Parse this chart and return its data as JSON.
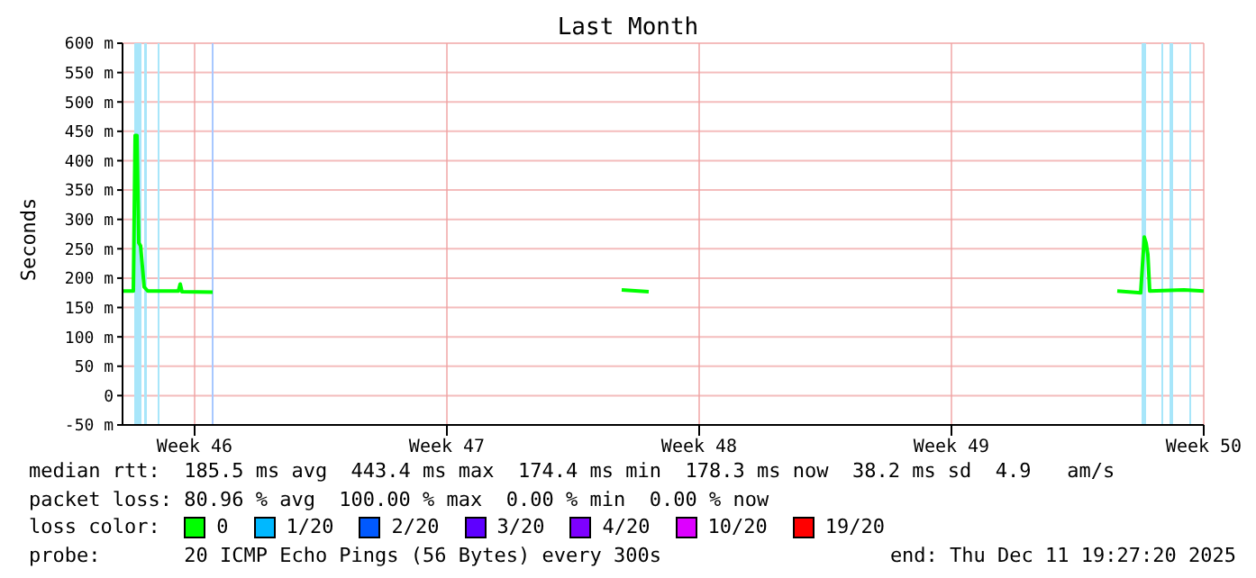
{
  "chart_data": {
    "type": "line",
    "title": "Last Month",
    "ylabel": "Seconds",
    "x": [
      "2025-11-11T19:27",
      "2025-11-12T02:39",
      "2025-11-12T03:51",
      "2025-11-12T05:03",
      "2025-11-12T06:15",
      "2025-11-12T07:27",
      "2025-11-12T08:39",
      "2025-11-12T09:51",
      "2025-11-12T12:15",
      "2025-11-13T08:39",
      "2025-11-13T09:51",
      "2025-11-13T11:03",
      "2025-11-14T07:27",
      "2025-11-20T00:00",
      "2025-11-25T15:51",
      "2025-11-26T09:51",
      "2025-12-03T00:00",
      "2025-12-09T09:51",
      "2025-12-10T01:27",
      "2025-12-10T03:51",
      "2025-12-10T05:03",
      "2025-12-10T06:15",
      "2025-12-10T07:27",
      "2025-12-11T06:15",
      "2025-12-11T19:27"
    ],
    "series": [
      {
        "name": "0",
        "color": "#00ff00",
        "values": [
          178,
          178,
          443,
          443,
          260,
          255,
          220,
          185,
          178,
          178,
          190,
          177,
          176,
          null,
          180,
          177,
          null,
          178,
          175,
          270,
          260,
          240,
          178,
          180,
          178
        ]
      },
      {
        "name": "1/20",
        "color": "#00b8ff",
        "values": [
          null,
          null,
          null,
          null,
          null,
          null,
          null,
          null,
          null,
          null,
          null,
          null,
          null,
          null,
          null,
          null,
          null,
          null,
          null,
          null,
          null,
          null,
          null,
          null,
          null
        ]
      },
      {
        "name": "2/20",
        "color": "#0059ff",
        "values": [
          null,
          null,
          null,
          null,
          null,
          null,
          null,
          null,
          null,
          null,
          null,
          null,
          null,
          null,
          null,
          null,
          null,
          null,
          null,
          null,
          null,
          null,
          null,
          null,
          null
        ]
      },
      {
        "name": "3/20",
        "color": "#5e00ff",
        "values": [
          null,
          null,
          null,
          null,
          null,
          null,
          null,
          null,
          null,
          null,
          null,
          null,
          null,
          null,
          null,
          null,
          null,
          null,
          null,
          null,
          null,
          null,
          null,
          null,
          null
        ]
      },
      {
        "name": "4/20",
        "color": "#7e00ff",
        "values": [
          null,
          null,
          null,
          null,
          null,
          null,
          null,
          null,
          null,
          null,
          null,
          null,
          null,
          null,
          null,
          null,
          null,
          null,
          null,
          null,
          null,
          null,
          null,
          null,
          null
        ]
      },
      {
        "name": "10/20",
        "color": "#dd00ff",
        "values": [
          null,
          null,
          null,
          null,
          null,
          null,
          null,
          null,
          null,
          null,
          null,
          null,
          null,
          null,
          null,
          null,
          null,
          null,
          null,
          null,
          null,
          null,
          null,
          null,
          null
        ]
      },
      {
        "name": "19/20",
        "color": "#ff0000",
        "values": [
          null,
          null,
          null,
          null,
          null,
          null,
          null,
          null,
          null,
          null,
          null,
          null,
          null,
          null,
          null,
          null,
          null,
          null,
          null,
          null,
          null,
          null,
          null,
          null,
          null
        ]
      }
    ],
    "legend_title": "loss color:",
    "legend": "bottom left",
    "xlim": [
      "2025-11-11T19:27",
      "2025-12-11T19:27"
    ],
    "xticks": [
      {
        "value": "2025-11-13T19:27",
        "label": "Week 46"
      },
      {
        "value": "2025-11-20T19:27",
        "label": "Week 47"
      },
      {
        "value": "2025-11-27T19:27",
        "label": "Week 48"
      },
      {
        "value": "2025-12-04T19:27",
        "label": "Week 49"
      },
      {
        "value": "2025-12-11T19:27",
        "label": "Week 50"
      }
    ],
    "ylim": [
      -50,
      600
    ],
    "yticks": [
      {
        "value": -50,
        "label": "-50 m"
      },
      {
        "value": 0,
        "label": "0"
      },
      {
        "value": 50,
        "label": "50 m"
      },
      {
        "value": 100,
        "label": "100 m"
      },
      {
        "value": 150,
        "label": "150 m"
      },
      {
        "value": 200,
        "label": "200 m"
      },
      {
        "value": 250,
        "label": "250 m"
      },
      {
        "value": 300,
        "label": "300 m"
      },
      {
        "value": 350,
        "label": "350 m"
      },
      {
        "value": 400,
        "label": "400 m"
      },
      {
        "value": 450,
        "label": "450 m"
      },
      {
        "value": 500,
        "label": "500 m"
      },
      {
        "value": 550,
        "label": "550 m"
      },
      {
        "value": 600,
        "label": "600 m"
      }
    ],
    "bands": [
      {
        "axis": "x",
        "from": "2025-11-12T03:15",
        "to": "2025-11-12T08:03",
        "color": "#a8e6fa"
      },
      {
        "axis": "x",
        "from": "2025-11-12T09:51",
        "to": "2025-11-12T11:39",
        "color": "#a8e6fa"
      },
      {
        "axis": "x",
        "from": "2025-11-12T18:51",
        "to": "2025-11-12T20:03",
        "color": "#a8e6fa"
      },
      {
        "axis": "x",
        "from": "2025-11-14T06:51",
        "to": "2025-11-14T08:03",
        "color": "#a8c8ff"
      },
      {
        "axis": "x",
        "from": "2025-12-10T02:03",
        "to": "2025-12-10T05:03",
        "color": "#a8e6fa"
      },
      {
        "axis": "x",
        "from": "2025-12-10T15:15",
        "to": "2025-12-10T16:27",
        "color": "#a8e6fa"
      },
      {
        "axis": "x",
        "from": "2025-12-10T20:39",
        "to": "2025-12-10T23:03",
        "color": "#a8e6fa"
      },
      {
        "axis": "x",
        "from": "2025-12-11T09:51",
        "to": "2025-12-11T11:03",
        "color": "#a8e6fa"
      }
    ],
    "grid": true,
    "marker": "none",
    "line_style": "solid",
    "annotations": [
      "median rtt:  185.5 ms avg  443.4 ms max  174.4 ms min  178.3 ms now  38.2 ms sd  4.9   am/s",
      "packet loss: 80.96 % avg  100.00 % max  0.00 % min  0.00 % now",
      "probe:       20 ICMP Echo Pings (56 Bytes) every 300s",
      "end: Thu Dec 11 19:27:20 2025"
    ]
  }
}
